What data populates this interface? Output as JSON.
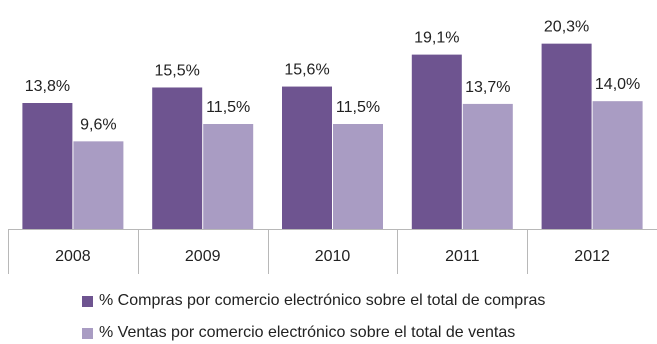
{
  "chart_data": {
    "type": "bar",
    "categories": [
      "2008",
      "2009",
      "2010",
      "2011",
      "2012"
    ],
    "series": [
      {
        "name": "% Compras por comercio electrónico sobre el total de compras",
        "values": [
          13.8,
          15.5,
          15.6,
          19.1,
          20.3
        ],
        "labels": [
          "13,8%",
          "15,5%",
          "15,6%",
          "19,1%",
          "20,3%"
        ],
        "color": "#6e5490"
      },
      {
        "name": "% Ventas por comercio electrónico sobre el total de ventas",
        "values": [
          9.6,
          11.5,
          11.5,
          13.7,
          14.0
        ],
        "labels": [
          "9,6%",
          "11,5%",
          "11,5%",
          "13,7%",
          "14,0%"
        ],
        "color": "#a99cc3"
      }
    ],
    "ylim": [
      0,
      23
    ],
    "grid": false,
    "legend_position": "bottom",
    "axis_color": "#b8b8b8"
  }
}
